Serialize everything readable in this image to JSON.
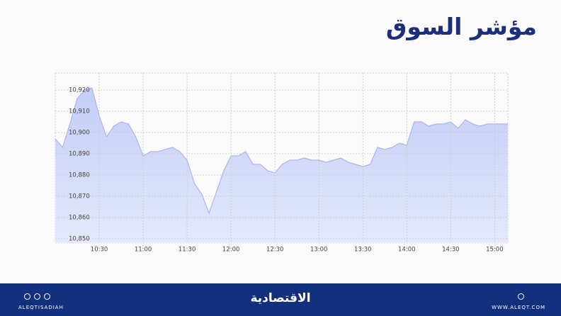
{
  "header": {
    "title": "مؤشر السوق"
  },
  "chart_data": {
    "type": "area",
    "color": "#a8b6f0",
    "grid": true,
    "xlim": [
      600,
      909
    ],
    "ylim": [
      10848,
      10928
    ],
    "xticks": [
      {
        "value": 630,
        "label": "10:30"
      },
      {
        "value": 660,
        "label": "11:00"
      },
      {
        "value": 690,
        "label": "11:30"
      },
      {
        "value": 720,
        "label": "12:00"
      },
      {
        "value": 750,
        "label": "12:30"
      },
      {
        "value": 780,
        "label": "13:00"
      },
      {
        "value": 810,
        "label": "13:30"
      },
      {
        "value": 840,
        "label": "14:00"
      },
      {
        "value": 870,
        "label": "14:30"
      },
      {
        "value": 900,
        "label": "15:00"
      }
    ],
    "yticks": [
      {
        "value": 10850,
        "label": "10,850"
      },
      {
        "value": 10860,
        "label": "10,860"
      },
      {
        "value": 10870,
        "label": "10,870"
      },
      {
        "value": 10880,
        "label": "10,880"
      },
      {
        "value": 10890,
        "label": "10,890"
      },
      {
        "value": 10900,
        "label": "10,900"
      },
      {
        "value": 10910,
        "label": "10,910"
      },
      {
        "value": 10920,
        "label": "10,920"
      }
    ],
    "x": [
      600,
      605,
      610,
      615,
      620,
      625,
      630,
      635,
      640,
      645,
      650,
      655,
      660,
      665,
      670,
      675,
      680,
      685,
      690,
      695,
      700,
      705,
      710,
      715,
      720,
      725,
      730,
      735,
      740,
      745,
      750,
      755,
      760,
      765,
      770,
      775,
      780,
      785,
      790,
      795,
      800,
      805,
      810,
      815,
      820,
      825,
      830,
      835,
      840,
      845,
      850,
      855,
      860,
      865,
      870,
      875,
      880,
      885,
      890,
      895,
      900,
      905,
      909
    ],
    "values": [
      10897,
      10893,
      10904,
      10916,
      10920,
      10921,
      10908,
      10898,
      10903,
      10905,
      10904,
      10898,
      10889,
      10891,
      10891,
      10892,
      10893,
      10891,
      10887,
      10876,
      10871,
      10862,
      10872,
      10882,
      10889,
      10889,
      10891,
      10885,
      10885,
      10882,
      10881,
      10885,
      10887,
      10887,
      10888,
      10887,
      10887,
      10886,
      10887,
      10888,
      10886,
      10885,
      10884,
      10885,
      10893,
      10892,
      10893,
      10895,
      10894,
      10905,
      10905,
      10903,
      10904,
      10904,
      10905,
      10902,
      10906,
      10904,
      10903,
      10904,
      10904,
      10904,
      10904
    ]
  },
  "footer": {
    "logo": "الاقتصادية",
    "handle": "ALEQTISADIAH",
    "website": "WWW.ALEQT.COM"
  }
}
